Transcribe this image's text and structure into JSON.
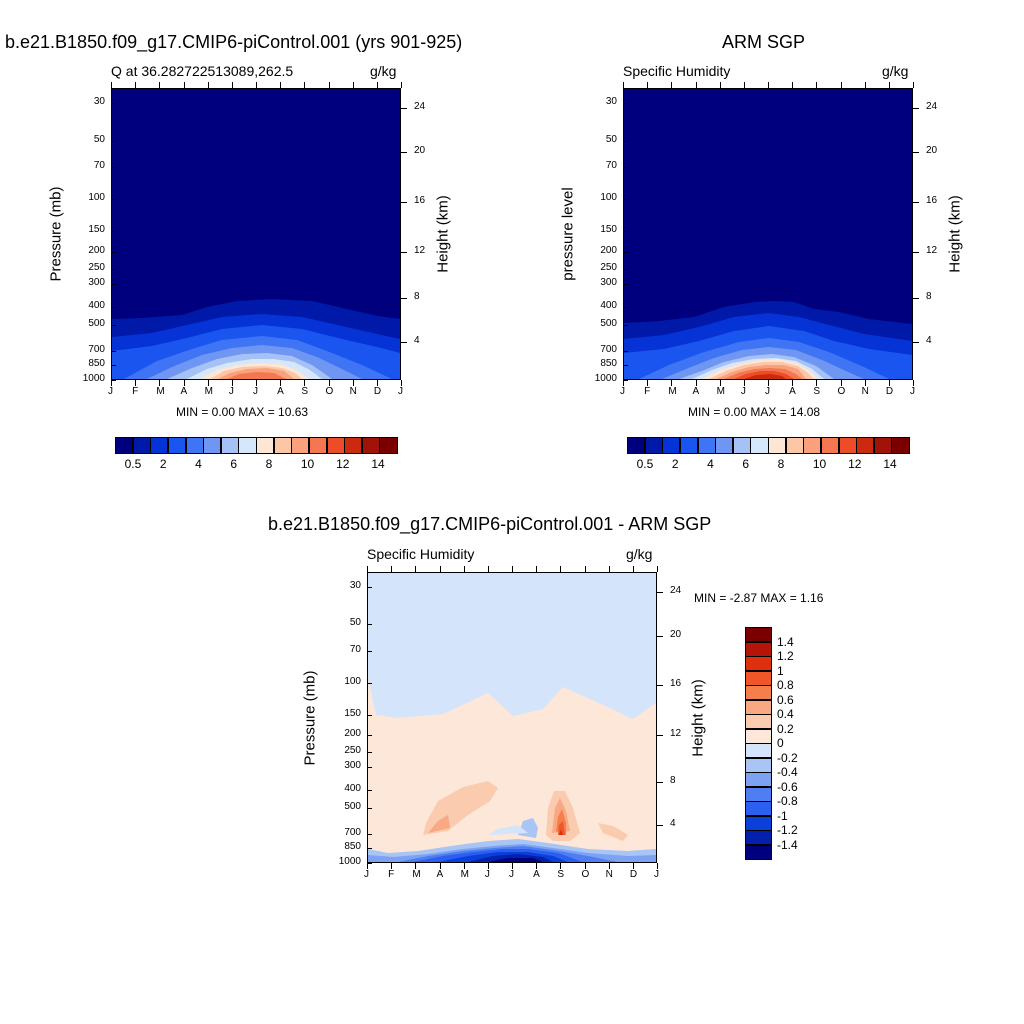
{
  "panels": {
    "p1": {
      "title": "b.e21.B1850.f09_g17.CMIP6-piControl.001 (yrs 901-925)",
      "left_label": "Q at 36.282722513089,262.5",
      "right_label": "g/kg",
      "ylabel": "Pressure (mb)",
      "y2label": "Height (km)",
      "minmax": "MIN =   0.00 MAX =  10.63"
    },
    "p2": {
      "title": "ARM SGP",
      "left_label": "Specific Humidity",
      "right_label": "g/kg",
      "ylabel": "pressure level",
      "y2label": "Height (km)",
      "minmax": "MIN =   0.00 MAX =  14.08"
    },
    "p3": {
      "title": "b.e21.B1850.f09_g17.CMIP6-piControl.001 - ARM SGP",
      "left_label": "Specific Humidity",
      "right_label": "g/kg",
      "ylabel": "Pressure (mb)",
      "y2label": "Height (km)",
      "minmax": "MIN =  -2.87 MAX =   1.16"
    }
  },
  "colorbar_abs": {
    "colors": [
      "#00007f",
      "#0019a8",
      "#0633d6",
      "#1a55f0",
      "#3f74f5",
      "#6f96f2",
      "#a5c1f5",
      "#d6e6fb",
      "#fde6d4",
      "#fcc6a7",
      "#f9a07c",
      "#f57752",
      "#ec4c26",
      "#cc2a0e",
      "#a11308",
      "#7a0000"
    ],
    "labels": [
      "0.5",
      "2",
      "4",
      "6",
      "8",
      "10",
      "12",
      "14"
    ]
  },
  "colorbar_diff": {
    "colors": [
      "#7a0000",
      "#b41508",
      "#de300f",
      "#f05628",
      "#f57e4d",
      "#f8a882",
      "#fbcbb0",
      "#fde7d8",
      "#d4e5fb",
      "#a9c5f5",
      "#7da2f2",
      "#4f7ef2",
      "#2a5ff0",
      "#0b3fd9",
      "#0220ab",
      "#00007f"
    ],
    "labels": [
      "1.4",
      "1.2",
      "1",
      "0.8",
      "0.6",
      "0.4",
      "0.2",
      "0",
      "-0.2",
      "-0.4",
      "-0.6",
      "-0.8",
      "-1",
      "-1.2",
      "-1.4"
    ]
  },
  "axes": {
    "pressure_ticks": [
      "30",
      "50",
      "70",
      "100",
      "150",
      "200",
      "250",
      "300",
      "400",
      "500",
      "700",
      "850",
      "1000"
    ],
    "height_ticks": [
      "24",
      "20",
      "16",
      "12",
      "8",
      "4"
    ],
    "month_ticks": [
      "J",
      "F",
      "M",
      "A",
      "M",
      "J",
      "J",
      "A",
      "S",
      "O",
      "N",
      "D",
      "J"
    ]
  },
  "chart_data": [
    {
      "type": "heatmap",
      "title": "b.e21.B1850.f09_g17.CMIP6-piControl.001 (yrs 901-925)",
      "variable": "Q at 36.282722513089,262.5",
      "units": "g/kg",
      "xlabel": "",
      "ylabel": "Pressure (mb)",
      "y2label": "Height (km)",
      "x_categories": [
        "J",
        "F",
        "M",
        "A",
        "M",
        "J",
        "J",
        "A",
        "S",
        "O",
        "N",
        "D",
        "J"
      ],
      "y_range_mb": [
        30,
        1000
      ],
      "min": 0.0,
      "max": 10.63,
      "contour_levels": [
        0.5,
        1,
        2,
        3,
        4,
        5,
        6,
        7,
        8,
        9,
        10,
        11,
        12,
        13,
        14
      ]
    },
    {
      "type": "heatmap",
      "title": "ARM SGP",
      "variable": "Specific Humidity",
      "units": "g/kg",
      "xlabel": "",
      "ylabel": "pressure level",
      "y2label": "Height (km)",
      "x_categories": [
        "J",
        "F",
        "M",
        "A",
        "M",
        "J",
        "J",
        "A",
        "S",
        "O",
        "N",
        "D",
        "J"
      ],
      "y_range_mb": [
        30,
        1000
      ],
      "min": 0.0,
      "max": 14.08,
      "contour_levels": [
        0.5,
        1,
        2,
        3,
        4,
        5,
        6,
        7,
        8,
        9,
        10,
        11,
        12,
        13,
        14
      ]
    },
    {
      "type": "heatmap",
      "title": "b.e21.B1850.f09_g17.CMIP6-piControl.001 - ARM SGP",
      "variable": "Specific Humidity",
      "units": "g/kg",
      "xlabel": "",
      "ylabel": "Pressure (mb)",
      "y2label": "Height (km)",
      "x_categories": [
        "J",
        "F",
        "M",
        "A",
        "M",
        "J",
        "J",
        "A",
        "S",
        "O",
        "N",
        "D",
        "J"
      ],
      "y_range_mb": [
        30,
        1000
      ],
      "min": -2.87,
      "max": 1.16,
      "contour_levels": [
        -1.4,
        -1.2,
        -1,
        -0.8,
        -0.6,
        -0.4,
        -0.2,
        0,
        0.2,
        0.4,
        0.6,
        0.8,
        1,
        1.2,
        1.4
      ]
    }
  ]
}
